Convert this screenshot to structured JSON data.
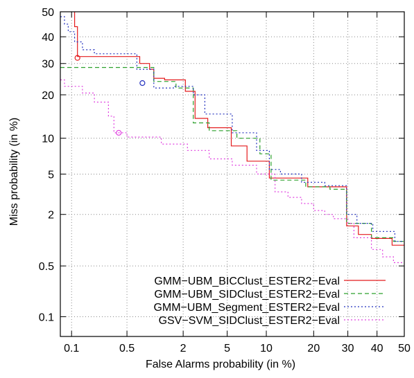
{
  "chart_data": {
    "type": "line",
    "subtype": "DET curve",
    "xlabel": "False Alarms probability (in %)",
    "ylabel": "Miss probability (in %)",
    "x_scale": "probit",
    "y_scale": "probit",
    "xlim": [
      0.07,
      50
    ],
    "ylim": [
      0.05,
      50
    ],
    "x_ticks": [
      {
        "value": 0.1,
        "label": "0.1"
      },
      {
        "value": 0.5,
        "label": "0.5"
      },
      {
        "value": 2,
        "label": "2"
      },
      {
        "value": 5,
        "label": "5"
      },
      {
        "value": 10,
        "label": "10"
      },
      {
        "value": 20,
        "label": "20"
      },
      {
        "value": 30,
        "label": "30"
      },
      {
        "value": 40,
        "label": "40"
      },
      {
        "value": 50,
        "label": "50"
      }
    ],
    "y_ticks": [
      {
        "value": 0.1,
        "label": "0.1"
      },
      {
        "value": 0.5,
        "label": "0.5"
      },
      {
        "value": 2,
        "label": "2"
      },
      {
        "value": 5,
        "label": "5"
      },
      {
        "value": 10,
        "label": "10"
      },
      {
        "value": 20,
        "label": "20"
      },
      {
        "value": 30,
        "label": "30"
      },
      {
        "value": 40,
        "label": "40"
      },
      {
        "value": 50,
        "label": "50"
      }
    ],
    "grid": true,
    "legend_position": "bottom-right",
    "series": [
      {
        "name": "GMM−UBM_BICClust_ESTER2−Eval",
        "color": "#e41a1c",
        "dash": "solid",
        "marker": {
          "x": 0.12,
          "y": 32
        },
        "points": [
          [
            0.11,
            50
          ],
          [
            0.11,
            44
          ],
          [
            0.12,
            44
          ],
          [
            0.12,
            32.5
          ],
          [
            0.7,
            32.5
          ],
          [
            0.7,
            30
          ],
          [
            0.9,
            30
          ],
          [
            0.9,
            28
          ],
          [
            1.0,
            28
          ],
          [
            1.0,
            25
          ],
          [
            1.3,
            25
          ],
          [
            1.3,
            24.5
          ],
          [
            2.1,
            24.5
          ],
          [
            2.1,
            21
          ],
          [
            2.6,
            21
          ],
          [
            2.6,
            14
          ],
          [
            3.4,
            14
          ],
          [
            3.4,
            12
          ],
          [
            5.4,
            12
          ],
          [
            5.4,
            8.7
          ],
          [
            7.2,
            8.7
          ],
          [
            7.2,
            6.5
          ],
          [
            10.5,
            6.5
          ],
          [
            10.5,
            4.6
          ],
          [
            18.5,
            4.6
          ],
          [
            18.5,
            3.8
          ],
          [
            29.6,
            3.8
          ],
          [
            29.6,
            1.5
          ],
          [
            33.5,
            1.5
          ],
          [
            33.5,
            1.2
          ],
          [
            38.0,
            1.2
          ],
          [
            38.0,
            1.08
          ],
          [
            45.5,
            1.08
          ],
          [
            45.5,
            0.9
          ],
          [
            50,
            0.9
          ]
        ]
      },
      {
        "name": "GMM−UBM_SIDClust_ESTER2−Eval",
        "color": "#2ca02c",
        "dash": "6,4",
        "marker": null,
        "points": [
          [
            0.07,
            28.6
          ],
          [
            0.69,
            28.6
          ],
          [
            0.69,
            28.6
          ],
          [
            1.0,
            28.6
          ],
          [
            1.0,
            24
          ],
          [
            1.7,
            24
          ],
          [
            1.7,
            22
          ],
          [
            2.5,
            22
          ],
          [
            2.5,
            13
          ],
          [
            3.5,
            13
          ],
          [
            3.5,
            11.4
          ],
          [
            6.0,
            11.4
          ],
          [
            6.0,
            10
          ],
          [
            9.0,
            10
          ],
          [
            9.0,
            7.5
          ],
          [
            10.8,
            7.5
          ],
          [
            10.8,
            4.4
          ],
          [
            18.0,
            4.4
          ],
          [
            18.0,
            3.8
          ],
          [
            24.5,
            3.8
          ],
          [
            24.5,
            3.6
          ],
          [
            29.6,
            3.6
          ],
          [
            29.6,
            1.6
          ],
          [
            38.0,
            1.6
          ],
          [
            38.0,
            1.1
          ],
          [
            46.0,
            1.1
          ],
          [
            46.0,
            1.0
          ],
          [
            50,
            1.0
          ]
        ]
      },
      {
        "name": "GMM−UBM_Segment_ESTER2−Eval",
        "color": "#1f2dbd",
        "dash": "2,3",
        "marker": {
          "x": 0.75,
          "y": 23.5
        },
        "points": [
          [
            0.07,
            48
          ],
          [
            0.08,
            48
          ],
          [
            0.08,
            45
          ],
          [
            0.09,
            45
          ],
          [
            0.09,
            42
          ],
          [
            0.11,
            42
          ],
          [
            0.11,
            38
          ],
          [
            0.14,
            38
          ],
          [
            0.14,
            35
          ],
          [
            0.2,
            35
          ],
          [
            0.2,
            33.5
          ],
          [
            0.65,
            33.5
          ],
          [
            0.65,
            28
          ],
          [
            1.0,
            28
          ],
          [
            1.0,
            22
          ],
          [
            1.6,
            22
          ],
          [
            1.6,
            22.5
          ],
          [
            2.5,
            22.5
          ],
          [
            2.5,
            20
          ],
          [
            3.2,
            20
          ],
          [
            3.2,
            15
          ],
          [
            5.5,
            15
          ],
          [
            5.5,
            11
          ],
          [
            8.5,
            11
          ],
          [
            8.5,
            8
          ],
          [
            10.5,
            8
          ],
          [
            10.5,
            5.5
          ],
          [
            12.5,
            5.5
          ],
          [
            12.5,
            5.0
          ],
          [
            17.0,
            5.0
          ],
          [
            17.0,
            4.2
          ],
          [
            23.0,
            4.2
          ],
          [
            23.0,
            3.9
          ],
          [
            29.6,
            3.9
          ],
          [
            29.6,
            2.0
          ],
          [
            33.0,
            2.0
          ],
          [
            33.0,
            1.6
          ],
          [
            38.5,
            1.6
          ],
          [
            38.5,
            1.3
          ],
          [
            46.5,
            1.3
          ],
          [
            46.5,
            1.0
          ],
          [
            50,
            1.0
          ]
        ]
      },
      {
        "name": "GSV−SVM_SIDClust_ESTER2−Eval",
        "color": "#e040e0",
        "dash": "2,3",
        "marker": {
          "x": 0.4,
          "y": 11
        },
        "points": [
          [
            0.07,
            24.5
          ],
          [
            0.08,
            24.5
          ],
          [
            0.08,
            22.5
          ],
          [
            0.14,
            22.5
          ],
          [
            0.14,
            20.5
          ],
          [
            0.2,
            20.5
          ],
          [
            0.2,
            18
          ],
          [
            0.3,
            18
          ],
          [
            0.3,
            14.5
          ],
          [
            0.35,
            14.5
          ],
          [
            0.35,
            11
          ],
          [
            0.5,
            11
          ],
          [
            0.5,
            10.2
          ],
          [
            1.2,
            10.2
          ],
          [
            1.2,
            9.0
          ],
          [
            2.2,
            9.0
          ],
          [
            2.2,
            8.0
          ],
          [
            3.5,
            8.0
          ],
          [
            3.5,
            6.8
          ],
          [
            5.5,
            6.8
          ],
          [
            5.5,
            6.0
          ],
          [
            8.5,
            6.0
          ],
          [
            8.5,
            5.0
          ],
          [
            11.5,
            5.0
          ],
          [
            11.5,
            3.4
          ],
          [
            14.0,
            3.4
          ],
          [
            14.0,
            3.0
          ],
          [
            17.0,
            3.0
          ],
          [
            17.0,
            2.6
          ],
          [
            20.0,
            2.6
          ],
          [
            20.0,
            2.2
          ],
          [
            23.0,
            2.2
          ],
          [
            23.0,
            2.0
          ],
          [
            25.5,
            2.0
          ],
          [
            25.5,
            1.8
          ],
          [
            30.0,
            1.8
          ],
          [
            30.0,
            1.6
          ],
          [
            32.0,
            1.6
          ],
          [
            32.0,
            1.1
          ],
          [
            38.0,
            1.1
          ],
          [
            38.0,
            0.8
          ],
          [
            42.0,
            0.8
          ],
          [
            42.0,
            0.65
          ],
          [
            46.0,
            0.65
          ],
          [
            46.0,
            0.55
          ],
          [
            50,
            0.55
          ]
        ]
      }
    ]
  }
}
